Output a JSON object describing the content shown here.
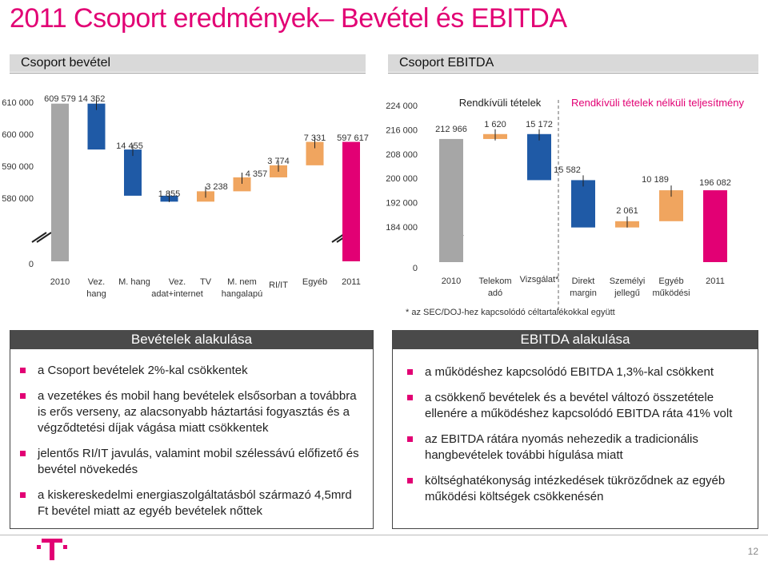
{
  "title": "2011 Csoport eredmények– Bevétel és EBITDA",
  "left_section_label": "Csoport bevétel",
  "right_section_label": "Csoport EBITDA",
  "colors": {
    "magenta": "#e20074",
    "grey": "#a6a6a6",
    "blue": "#1f5aa6",
    "orange": "#f0a55f"
  },
  "chart_data": [
    {
      "type": "bar",
      "subtype": "waterfall",
      "title": "",
      "y_ticks": [
        "0",
        "580 000",
        "590 000",
        "600 000",
        "610 000"
      ],
      "y_break": true,
      "ylim": [
        575000,
        612000
      ],
      "categories": [
        "2010",
        "Vez.\nhang",
        "M. hang",
        "Vez.\nadat+internet",
        "TV",
        "M. nem\nhangalapú",
        "RI/IT",
        "Egyéb",
        "2011"
      ],
      "values": [
        609579,
        -14352,
        -14455,
        -1855,
        3238,
        4357,
        3774,
        7331,
        597617
      ],
      "kinds": [
        "total",
        "delta",
        "delta",
        "delta",
        "delta",
        "delta",
        "delta",
        "delta",
        "total"
      ],
      "value_labels": [
        "609 579",
        "14 352",
        "14 455",
        "1 855",
        "3 238",
        "4 357",
        "3 774",
        "7 331",
        "597 617"
      ],
      "bar_colors": [
        "grey",
        "blue",
        "blue",
        "blue",
        "orange",
        "orange",
        "orange",
        "orange",
        "magenta"
      ]
    },
    {
      "type": "bar",
      "subtype": "waterfall",
      "title": "",
      "header_left": "Rendkívüli tételek",
      "header_right": "Rendkívüli tételek nélküli teljesítmény",
      "y_ticks": [
        "0",
        "184 000",
        "192 000",
        "200 000",
        "208 000",
        "216 000",
        "224 000"
      ],
      "y_break": true,
      "ylim": [
        184000,
        224000
      ],
      "categories": [
        "2010",
        "Telekom\nadó",
        "Vizsgálat*",
        "Direkt\nmargin",
        "Személyi\njellegű",
        "Egyéb\nműködési",
        "2011"
      ],
      "values": [
        212966,
        1620,
        -15172,
        -15582,
        2061,
        10189,
        196082
      ],
      "kinds": [
        "total",
        "delta",
        "delta",
        "delta",
        "delta",
        "delta",
        "total"
      ],
      "value_labels": [
        "212 966",
        "1 620",
        "15 172",
        "15 582",
        "2 061",
        "10 189",
        "196 082"
      ],
      "bar_colors": [
        "grey",
        "orange",
        "blue",
        "blue",
        "orange",
        "orange",
        "magenta"
      ],
      "footnote": "* az SEC/DOJ-hez kapcsolódó céltartalékokkal együtt"
    }
  ],
  "left_box": {
    "title": "Bevételek alakulása",
    "bullets": [
      "a Csoport bevételek 2%-kal csökkentek",
      "a vezetékes és mobil hang bevételek elsősorban a továbbra is erős verseny, az alacsonyabb háztartási fogyasztás és a végződtetési díjak vágása miatt csökkentek",
      "jelentős RI/IT javulás, valamint mobil szélessávú előfizető és bevétel növekedés",
      "a kiskereskedelmi energiaszolgáltatásból származó 4,5mrd Ft bevétel miatt az egyéb bevételek nőttek"
    ]
  },
  "right_box": {
    "title": "EBITDA alakulása",
    "bullets": [
      "a működéshez kapcsolódó EBITDA 1,3%-kal csökkent",
      "a csökkenő bevételek és a bevétel változó összetétele ellenére a működéshez kapcsolódó EBITDA ráta 41% volt",
      "az EBITDA rátára nyomás nehezedik a tradicionális hangbevételek további hígulása miatt",
      "költséghatékonyság intézkedések tükröződnek az egyéb működési költségek csökkenésén"
    ]
  },
  "page_number": "12",
  "logo": "t-logo-icon"
}
